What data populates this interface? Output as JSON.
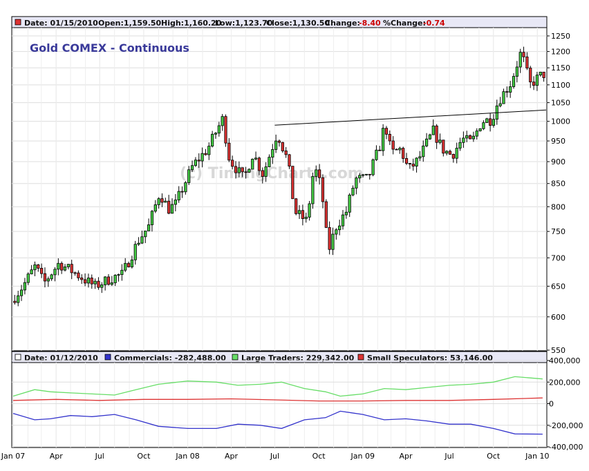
{
  "header": {
    "date_label": "Date: 01/15/2010",
    "open_label": "Open:1,159.50",
    "high_label": "High:1,160.20",
    "low_label": "Low:1,123.70",
    "close_label": "Close:1,130.50",
    "change_key": "Change:",
    "change_value": "-8.40",
    "pct_key": "%Change:",
    "pct_value": "-0.74"
  },
  "title": "Gold COMEX - Continuous",
  "watermark": "(c) TimingCharts.com",
  "lower_header": {
    "date_label": "Date: 01/12/2010",
    "commercials_label": "Commercials: -282,488.00",
    "large_label": "Large Traders: 229,342.00",
    "small_label": "Small Speculators: 53,146.00"
  },
  "colors": {
    "up": "#44cc44",
    "down": "#dd3333",
    "commercials": "#3333cc",
    "large": "#66dd66",
    "small": "#dd3333",
    "title": "#3a3a9a",
    "header_red": "#cc0000"
  },
  "chart_data": [
    {
      "type": "candlestick",
      "title": "Gold COMEX - Continuous",
      "y_scale": "log",
      "ylim": [
        550,
        1250
      ],
      "yticks": [
        550,
        600,
        650,
        700,
        750,
        800,
        850,
        900,
        950,
        1000,
        1050,
        1100,
        1150,
        1200,
        1250
      ],
      "xlim": [
        "2007-01-01",
        "2010-01-15"
      ],
      "xticks": [
        {
          "label": "Jan 07",
          "date": "2007-01-01"
        },
        {
          "label": "Apr",
          "date": "2007-04-01"
        },
        {
          "label": "Jul",
          "date": "2007-07-01"
        },
        {
          "label": "Oct",
          "date": "2007-10-01"
        },
        {
          "label": "Jan 08",
          "date": "2008-01-01"
        },
        {
          "label": "Apr",
          "date": "2008-04-01"
        },
        {
          "label": "Jul",
          "date": "2008-07-01"
        },
        {
          "label": "Oct",
          "date": "2008-10-01"
        },
        {
          "label": "Jan 09",
          "date": "2009-01-01"
        },
        {
          "label": "Apr",
          "date": "2009-04-01"
        },
        {
          "label": "Jul",
          "date": "2009-07-01"
        },
        {
          "label": "Oct",
          "date": "2009-10-01"
        },
        {
          "label": "Jan 10",
          "date": "2010-01-01"
        }
      ],
      "grid": true,
      "trendline": [
        {
          "date": "2008-07-01",
          "value": 990
        },
        {
          "date": "2010-01-15",
          "value": 1030
        }
      ],
      "price_path": [
        [
          "2007-01-01",
          625
        ],
        [
          "2007-01-25",
          650
        ],
        [
          "2007-02-20",
          685
        ],
        [
          "2007-03-10",
          655
        ],
        [
          "2007-04-10",
          690
        ],
        [
          "2007-05-10",
          675
        ],
        [
          "2007-06-05",
          660
        ],
        [
          "2007-06-25",
          650
        ],
        [
          "2007-08-01",
          665
        ],
        [
          "2007-08-20",
          670
        ],
        [
          "2007-09-01",
          690
        ],
        [
          "2007-09-25",
          735
        ],
        [
          "2007-10-15",
          760
        ],
        [
          "2007-11-07",
          830
        ],
        [
          "2007-11-25",
          795
        ],
        [
          "2007-12-10",
          805
        ],
        [
          "2008-01-15",
          890
        ],
        [
          "2008-02-15",
          930
        ],
        [
          "2008-03-17",
          1005
        ],
        [
          "2008-04-01",
          905
        ],
        [
          "2008-05-01",
          860
        ],
        [
          "2008-05-20",
          920
        ],
        [
          "2008-06-10",
          870
        ],
        [
          "2008-07-10",
          970
        ],
        [
          "2008-08-01",
          900
        ],
        [
          "2008-08-15",
          790
        ],
        [
          "2008-09-10",
          770
        ],
        [
          "2008-09-25",
          890
        ],
        [
          "2008-10-10",
          840
        ],
        [
          "2008-10-24",
          710
        ],
        [
          "2008-11-10",
          760
        ],
        [
          "2008-12-01",
          790
        ],
        [
          "2008-12-20",
          860
        ],
        [
          "2009-01-15",
          860
        ],
        [
          "2009-02-10",
          940
        ],
        [
          "2009-02-20",
          995
        ],
        [
          "2009-03-05",
          920
        ],
        [
          "2009-03-25",
          930
        ],
        [
          "2009-04-10",
          880
        ],
        [
          "2009-05-01",
          905
        ],
        [
          "2009-06-01",
          975
        ],
        [
          "2009-06-20",
          930
        ],
        [
          "2009-07-10",
          915
        ],
        [
          "2009-08-01",
          955
        ],
        [
          "2009-08-20",
          945
        ],
        [
          "2009-09-10",
          1000
        ],
        [
          "2009-10-01",
          1005
        ],
        [
          "2009-10-15",
          1055
        ],
        [
          "2009-11-10",
          1105
        ],
        [
          "2009-12-02",
          1200
        ],
        [
          "2009-12-20",
          1100
        ],
        [
          "2010-01-15",
          1131
        ]
      ]
    },
    {
      "type": "line",
      "ylim": [
        -400000,
        400000
      ],
      "yticks": [
        -400000,
        -200000,
        0,
        200000,
        400000
      ],
      "ytick_labels": [
        "-400,000",
        "-200,000",
        "0",
        "200,000",
        "400,000"
      ],
      "series": [
        {
          "name": "Commercials",
          "color": "#3333cc",
          "points": [
            [
              "2007-01-01",
              -90000
            ],
            [
              "2007-02-15",
              -150000
            ],
            [
              "2007-03-20",
              -140000
            ],
            [
              "2007-05-01",
              -110000
            ],
            [
              "2007-06-15",
              -120000
            ],
            [
              "2007-08-01",
              -100000
            ],
            [
              "2007-09-15",
              -150000
            ],
            [
              "2007-11-01",
              -210000
            ],
            [
              "2008-01-01",
              -230000
            ],
            [
              "2008-03-01",
              -230000
            ],
            [
              "2008-04-15",
              -190000
            ],
            [
              "2008-06-01",
              -200000
            ],
            [
              "2008-07-15",
              -230000
            ],
            [
              "2008-09-01",
              -150000
            ],
            [
              "2008-10-15",
              -130000
            ],
            [
              "2008-11-15",
              -70000
            ],
            [
              "2009-01-01",
              -100000
            ],
            [
              "2009-02-15",
              -150000
            ],
            [
              "2009-04-01",
              -140000
            ],
            [
              "2009-05-15",
              -160000
            ],
            [
              "2009-07-01",
              -190000
            ],
            [
              "2009-08-15",
              -190000
            ],
            [
              "2009-10-01",
              -230000
            ],
            [
              "2009-11-15",
              -280000
            ],
            [
              "2010-01-12",
              -282488
            ]
          ]
        },
        {
          "name": "Large Traders",
          "color": "#66dd66",
          "points": [
            [
              "2007-01-01",
              70000
            ],
            [
              "2007-02-15",
              130000
            ],
            [
              "2007-03-20",
              110000
            ],
            [
              "2007-05-01",
              100000
            ],
            [
              "2007-06-15",
              90000
            ],
            [
              "2007-08-01",
              80000
            ],
            [
              "2007-09-15",
              130000
            ],
            [
              "2007-11-01",
              180000
            ],
            [
              "2008-01-01",
              210000
            ],
            [
              "2008-03-01",
              200000
            ],
            [
              "2008-04-15",
              170000
            ],
            [
              "2008-06-01",
              180000
            ],
            [
              "2008-07-15",
              200000
            ],
            [
              "2008-09-01",
              140000
            ],
            [
              "2008-10-15",
              110000
            ],
            [
              "2008-11-15",
              70000
            ],
            [
              "2009-01-01",
              90000
            ],
            [
              "2009-02-15",
              140000
            ],
            [
              "2009-04-01",
              130000
            ],
            [
              "2009-05-15",
              150000
            ],
            [
              "2009-07-01",
              170000
            ],
            [
              "2009-08-15",
              180000
            ],
            [
              "2009-10-01",
              200000
            ],
            [
              "2009-11-15",
              250000
            ],
            [
              "2010-01-12",
              229342
            ]
          ]
        },
        {
          "name": "Small Speculators",
          "color": "#dd3333",
          "points": [
            [
              "2007-01-01",
              30000
            ],
            [
              "2007-04-01",
              40000
            ],
            [
              "2007-07-01",
              30000
            ],
            [
              "2007-10-01",
              40000
            ],
            [
              "2008-01-01",
              40000
            ],
            [
              "2008-04-01",
              45000
            ],
            [
              "2008-07-01",
              35000
            ],
            [
              "2008-10-01",
              25000
            ],
            [
              "2009-01-01",
              25000
            ],
            [
              "2009-04-01",
              30000
            ],
            [
              "2009-07-01",
              30000
            ],
            [
              "2009-10-01",
              40000
            ],
            [
              "2010-01-12",
              53146
            ]
          ]
        }
      ]
    }
  ]
}
